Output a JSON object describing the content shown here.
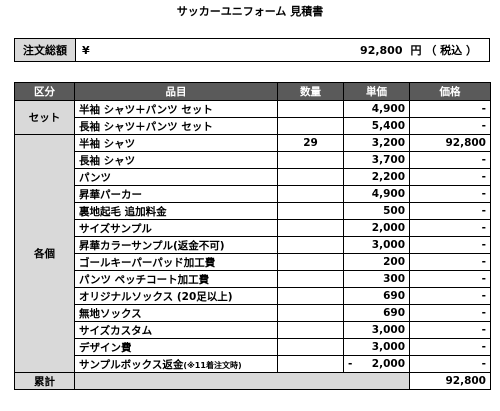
{
  "title": "サッカーユニフォーム 見積書",
  "total": {
    "label": "注文総額",
    "currency": "¥",
    "amount": "92,800",
    "unit": "円 （ 税込 ）"
  },
  "headers": {
    "category": "区分",
    "item": "品目",
    "qty": "数量",
    "unit_price": "単価",
    "price": "価格"
  },
  "categories": {
    "set": "セット",
    "individual": "各個"
  },
  "set_rows": [
    {
      "item": "半袖 シャツ＋パンツ セット",
      "qty": "",
      "unit_price": "4,900",
      "price": "-"
    },
    {
      "item": "長袖 シャツ＋パンツ セット",
      "qty": "",
      "unit_price": "5,400",
      "price": "-"
    }
  ],
  "individual_rows": [
    {
      "item": "半袖 シャツ",
      "qty": "29",
      "unit_price": "3,200",
      "price": "92,800"
    },
    {
      "item": "長袖 シャツ",
      "qty": "",
      "unit_price": "3,700",
      "price": "-"
    },
    {
      "item": "パンツ",
      "qty": "",
      "unit_price": "2,200",
      "price": "-"
    },
    {
      "item": "昇華パーカー",
      "qty": "",
      "unit_price": "4,900",
      "price": "-"
    },
    {
      "item": "裏地起毛 追加料金",
      "qty": "",
      "unit_price": "500",
      "price": "-"
    },
    {
      "item": "サイズサンプル",
      "qty": "",
      "unit_price": "2,000",
      "price": "-"
    },
    {
      "item": "昇華カラーサンプル(返金不可)",
      "qty": "",
      "unit_price": "3,000",
      "price": "-"
    },
    {
      "item": "ゴールキーパーパッド加工費",
      "qty": "",
      "unit_price": "200",
      "price": "-"
    },
    {
      "item": "パンツ ペッチコート加工費",
      "qty": "",
      "unit_price": "300",
      "price": "-"
    },
    {
      "item": "オリジナルソックス (20足以上)",
      "qty": "",
      "unit_price": "690",
      "price": "-"
    },
    {
      "item": "無地ソックス",
      "qty": "",
      "unit_price": "690",
      "price": "-"
    },
    {
      "item": "サイズカスタム",
      "qty": "",
      "unit_price": "3,000",
      "price": "-"
    },
    {
      "item": "デザイン費",
      "qty": "",
      "unit_price": "3,000",
      "price": "-"
    }
  ],
  "refund_row": {
    "item": "サンプルボックス返金",
    "note": "(※11着注文時)",
    "qty": "",
    "sign": "-",
    "unit_price": "2,000",
    "price": "-"
  },
  "footer": {
    "label": "累計",
    "price": "92,800"
  }
}
